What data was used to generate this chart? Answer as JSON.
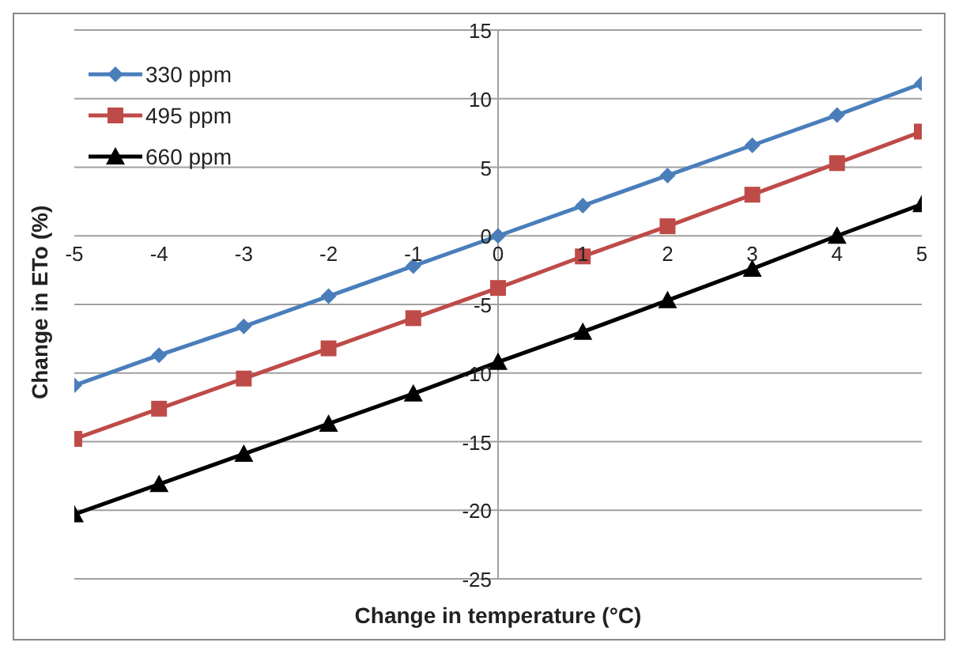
{
  "chart_data": {
    "type": "line",
    "xlabel": "Change in temperature (°C)",
    "ylabel": "Change in ETo (%)",
    "x": [
      -5,
      -4,
      -3,
      -2,
      -1,
      0,
      1,
      2,
      3,
      4,
      5
    ],
    "series": [
      {
        "name": "330 ppm",
        "color": "#4a7ebb",
        "marker": "diamond",
        "values": [
          -10.9,
          -8.7,
          -6.6,
          -4.4,
          -2.2,
          0,
          2.2,
          4.4,
          6.6,
          8.8,
          11.1
        ]
      },
      {
        "name": "495 ppm",
        "color": "#be4b48",
        "marker": "square",
        "values": [
          -14.8,
          -12.6,
          -10.4,
          -8.2,
          -6.0,
          -3.8,
          -1.5,
          0.7,
          3.0,
          5.3,
          7.6
        ]
      },
      {
        "name": "660 ppm",
        "color": "#000000",
        "marker": "triangle",
        "values": [
          -20.3,
          -18.1,
          -15.9,
          -13.7,
          -11.5,
          -9.2,
          -7.0,
          -4.7,
          -2.4,
          0.0,
          2.3
        ]
      }
    ],
    "xlim": [
      -5,
      5
    ],
    "xticks": [
      -5,
      -4,
      -3,
      -2,
      -1,
      0,
      1,
      2,
      3,
      4,
      5
    ],
    "ylim": [
      -25,
      15
    ],
    "yticks": [
      -25,
      -20,
      -15,
      -10,
      -5,
      0,
      5,
      10,
      15
    ],
    "grid": "y",
    "legend": "top left",
    "line_style": "solid"
  }
}
